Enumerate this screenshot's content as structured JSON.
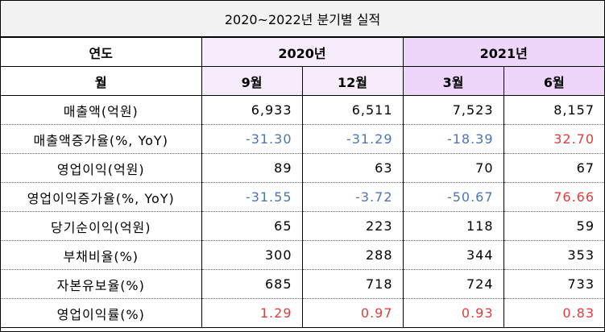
{
  "title": "2020~2022년 분기별 실적",
  "header": {
    "year_label": "연도",
    "month_label": "월",
    "years": [
      {
        "label": "2020년",
        "span": 2
      },
      {
        "label": "2021년",
        "span": 2
      }
    ],
    "months": [
      "9월",
      "12월",
      "3월",
      "6월"
    ]
  },
  "colors": {
    "year2020_bg": "#f7ecfc",
    "year2021_bg": "#eed6fa",
    "negative": "#4a76b3",
    "positive_highlight": "#e53b3b"
  },
  "rows": [
    {
      "label": "매출액(억원)",
      "values": [
        "6,933",
        "6,511",
        "7,523",
        "8,157"
      ],
      "colors": [
        "",
        "",
        "",
        ""
      ]
    },
    {
      "label": "매출액증가율(%, YoY)",
      "values": [
        "-31.30",
        "-31.29",
        "-18.39",
        "32.70"
      ],
      "colors": [
        "neg",
        "neg",
        "neg",
        "pos"
      ]
    },
    {
      "label": "영업이익(억원)",
      "values": [
        "89",
        "63",
        "70",
        "67"
      ],
      "colors": [
        "",
        "",
        "",
        ""
      ]
    },
    {
      "label": "영업이익증가율(%, YoY)",
      "values": [
        "-31.55",
        "-3.72",
        "-50.67",
        "76.66"
      ],
      "colors": [
        "neg",
        "neg",
        "neg",
        "pos"
      ]
    },
    {
      "label": "당기순이익(억원)",
      "values": [
        "65",
        "223",
        "118",
        "59"
      ],
      "colors": [
        "",
        "",
        "",
        ""
      ]
    },
    {
      "label": "부채비율(%)",
      "values": [
        "300",
        "288",
        "344",
        "353"
      ],
      "colors": [
        "",
        "",
        "",
        ""
      ]
    },
    {
      "label": "자본유보율(%)",
      "values": [
        "685",
        "718",
        "724",
        "733"
      ],
      "colors": [
        "",
        "",
        "",
        ""
      ]
    },
    {
      "label": "영업이익률(%)",
      "values": [
        "1.29",
        "0.97",
        "0.93",
        "0.83"
      ],
      "colors": [
        "pos",
        "pos",
        "pos",
        "pos"
      ]
    }
  ]
}
